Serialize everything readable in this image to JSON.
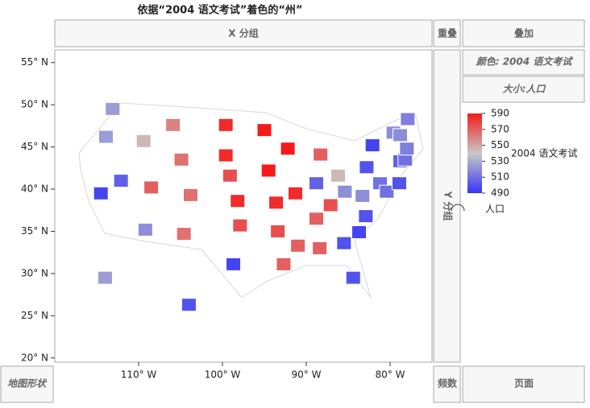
{
  "ui": {
    "title": "依据“2004 语文考试”着色的“州”",
    "x_group": "X 分组",
    "overlap": "重叠",
    "overlay": "叠加",
    "color_role": "颜色: 2004 语文考试",
    "size_role": "大小:人口",
    "y_group": "Y 分组",
    "map_shape": "地图形状",
    "freq": "频数",
    "page": "页面"
  },
  "chart_data": {
    "type": "map",
    "x": [
      -113.1,
      -113.9,
      -114.5,
      -112.1,
      -109.4,
      -105.9,
      -104.9,
      -108.5,
      -103.8,
      -109.2,
      -104.6,
      -99.6,
      -99.6,
      -99.1,
      -98.2,
      -97.9,
      -98.7,
      -95.0,
      -94.5,
      -93.6,
      -93.4,
      -92.7,
      -92.2,
      -91.3,
      -88.3,
      -88.8,
      -86.2,
      -87.1,
      -88.8,
      -91.0,
      -88.4,
      -85.5,
      -84.4,
      -83.7,
      -82.9,
      -83.3,
      -85.4,
      -81.2,
      -80.4,
      -82.8,
      -78.9,
      -82.1,
      -78.8,
      -78.2,
      -78.0,
      -79.6,
      -78.8,
      -77.9,
      -114.0,
      -104.0
    ],
    "y": [
      49.5,
      46.2,
      39.5,
      41.0,
      45.7,
      47.6,
      43.5,
      40.2,
      39.3,
      35.2,
      34.7,
      47.6,
      44.0,
      41.6,
      38.6,
      35.7,
      31.1,
      47.0,
      42.2,
      38.4,
      35.0,
      31.1,
      44.8,
      39.5,
      44.1,
      40.7,
      41.6,
      38.1,
      36.5,
      33.3,
      33.0,
      33.6,
      29.5,
      34.9,
      36.8,
      39.2,
      39.7,
      40.7,
      39.7,
      42.6,
      40.7,
      45.2,
      43.3,
      43.5,
      44.8,
      46.7,
      46.4,
      48.3,
      29.5,
      26.3
    ],
    "values": [
      525,
      525,
      495,
      505,
      545,
      560,
      565,
      570,
      565,
      520,
      565,
      585,
      585,
      575,
      585,
      575,
      495,
      590,
      590,
      585,
      575,
      570,
      590,
      585,
      570,
      505,
      545,
      575,
      570,
      570,
      570,
      500,
      500,
      495,
      500,
      520,
      520,
      510,
      510,
      500,
      500,
      495,
      505,
      510,
      515,
      520,
      520,
      515,
      525,
      500
    ],
    "xlim": [
      -120,
      -75
    ],
    "ylim": [
      19.5,
      56.5
    ],
    "xticks": [
      {
        "value": -110,
        "label": "110° W"
      },
      {
        "value": -100,
        "label": "100° W"
      },
      {
        "value": -90,
        "label": "90° W"
      },
      {
        "value": -80,
        "label": "80° W"
      }
    ],
    "yticks": [
      {
        "value": 55,
        "label": "55° N"
      },
      {
        "value": 50,
        "label": "50° N"
      },
      {
        "value": 45,
        "label": "45° N"
      },
      {
        "value": 40,
        "label": "40° N"
      },
      {
        "value": 35,
        "label": "35° N"
      },
      {
        "value": 30,
        "label": "30° N"
      },
      {
        "value": 25,
        "label": "25° N"
      },
      {
        "value": 20,
        "label": "20° N"
      }
    ],
    "color_legend": {
      "title": "2004 语文考试",
      "lim": [
        490,
        590
      ],
      "ticks": [
        590,
        570,
        550,
        530,
        510,
        490
      ],
      "colors": [
        "#3535f5",
        "#c8c8c8",
        "#f51a1a"
      ]
    },
    "size_legend": "人口"
  }
}
